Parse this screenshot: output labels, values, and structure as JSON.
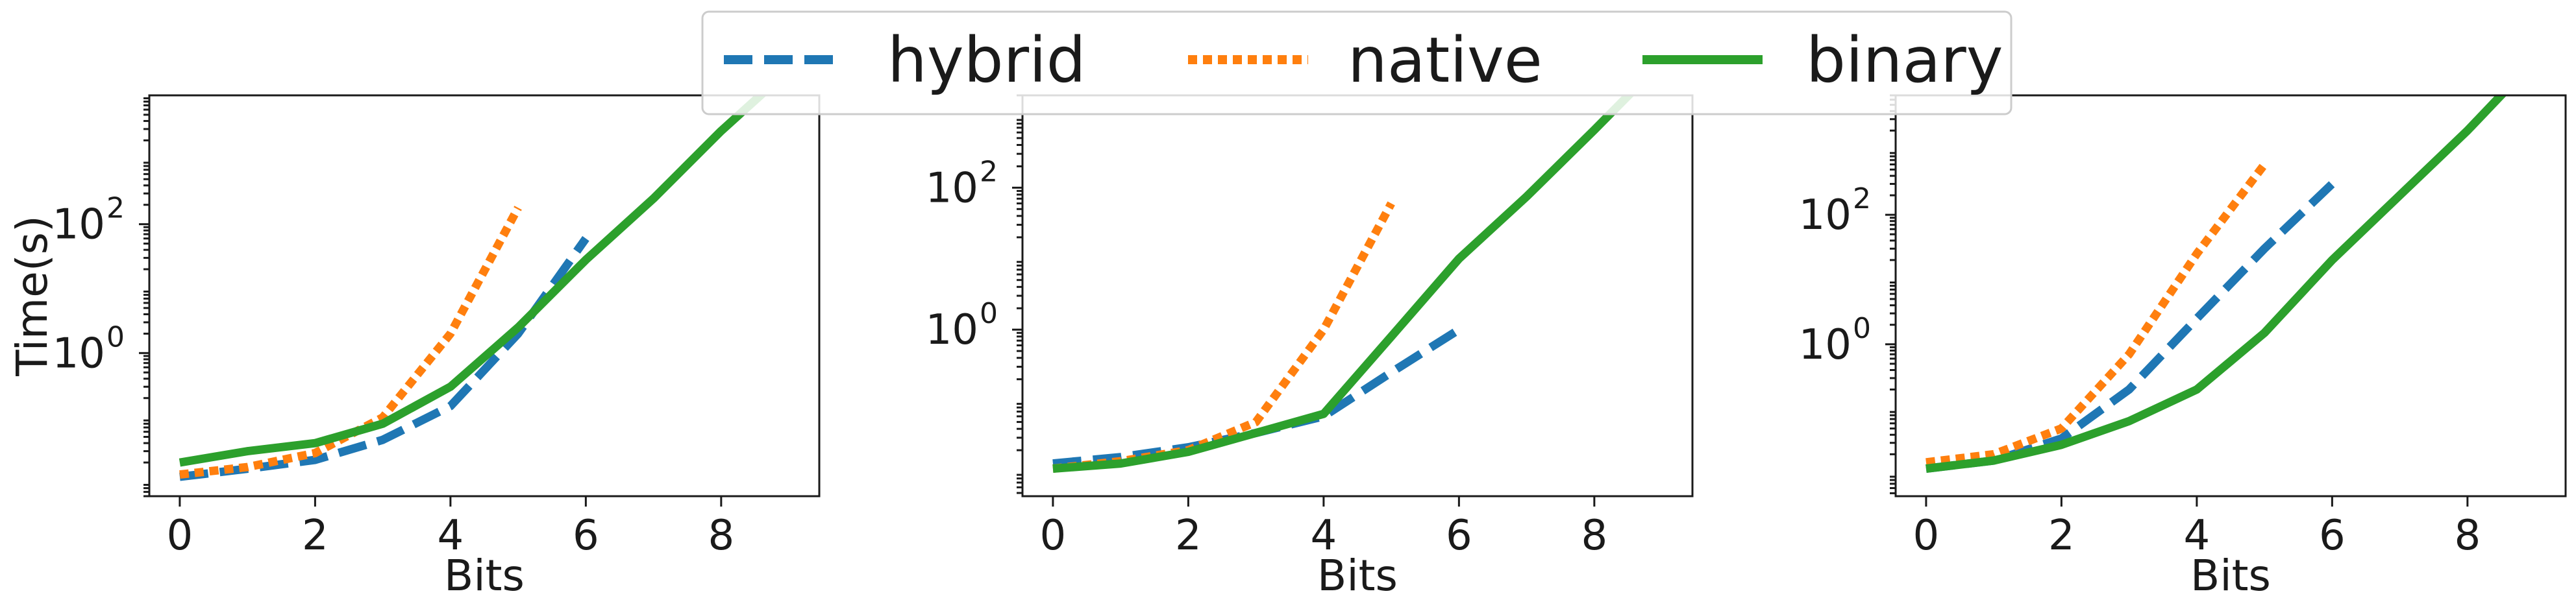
{
  "legend": {
    "placement": "top-center",
    "entries": [
      {
        "label": "hybrid",
        "color": "#1f77b4",
        "dash": "dashed"
      },
      {
        "label": "native",
        "color": "#ff7f0e",
        "dash": "dotted"
      },
      {
        "label": "binary",
        "color": "#2ca02c",
        "dash": "solid"
      }
    ]
  },
  "chart_data": [
    {
      "type": "line",
      "title": "",
      "xlabel": "Bits",
      "ylabel": "Time(s)",
      "yscale": "log",
      "xlim": [
        -0.45,
        9.45
      ],
      "ylim": [
        0.006,
        10000
      ],
      "xticks": [
        0,
        2,
        4,
        6,
        8
      ],
      "yticks": [
        {
          "value": 1,
          "label": "10^0"
        },
        {
          "value": 100,
          "label": "10^2"
        }
      ],
      "grid": false,
      "series": [
        {
          "name": "hybrid",
          "x": [
            0,
            1,
            2,
            3,
            4,
            5,
            6
          ],
          "y": [
            0.012,
            0.016,
            0.022,
            0.045,
            0.15,
            2,
            60
          ]
        },
        {
          "name": "native",
          "x": [
            0,
            1,
            2,
            3,
            4,
            5
          ],
          "y": [
            0.013,
            0.017,
            0.028,
            0.1,
            2,
            180
          ]
        },
        {
          "name": "binary",
          "x": [
            0,
            1,
            2,
            3,
            4,
            5,
            6,
            7,
            8,
            9
          ],
          "y": [
            0.02,
            0.03,
            0.04,
            0.08,
            0.3,
            2.5,
            28,
            250,
            2800,
            25000
          ]
        }
      ]
    },
    {
      "type": "line",
      "title": "",
      "xlabel": "Bits",
      "ylabel": "",
      "yscale": "log",
      "xlim": [
        -0.45,
        9.45
      ],
      "ylim": [
        0.0045,
        2000
      ],
      "xticks": [
        0,
        2,
        4,
        6,
        8
      ],
      "yticks": [
        {
          "value": 1,
          "label": "10^0"
        },
        {
          "value": 100,
          "label": "10^2"
        }
      ],
      "grid": false,
      "series": [
        {
          "name": "hybrid",
          "x": [
            0,
            1,
            2,
            3,
            4,
            5,
            6
          ],
          "y": [
            0.013,
            0.016,
            0.022,
            0.035,
            0.06,
            0.25,
            1
          ]
        },
        {
          "name": "native",
          "x": [
            0,
            1,
            2,
            3,
            4,
            5
          ],
          "y": [
            0.011,
            0.014,
            0.02,
            0.05,
            1,
            60
          ]
        },
        {
          "name": "binary",
          "x": [
            0,
            1,
            2,
            3,
            4,
            5,
            6,
            7,
            8,
            9
          ],
          "y": [
            0.011,
            0.013,
            0.019,
            0.035,
            0.065,
            0.8,
            10,
            75,
            650,
            6000
          ]
        }
      ]
    },
    {
      "type": "line",
      "title": "",
      "xlabel": "Bits",
      "ylabel": "",
      "yscale": "log",
      "xlim": [
        -0.45,
        9.45
      ],
      "ylim": [
        0.0045,
        7000
      ],
      "xticks": [
        0,
        2,
        4,
        6,
        8
      ],
      "yticks": [
        {
          "value": 1,
          "label": "10^0"
        },
        {
          "value": 100,
          "label": "10^2"
        }
      ],
      "grid": false,
      "series": [
        {
          "name": "hybrid",
          "x": [
            0,
            1,
            2,
            3,
            4,
            5,
            6
          ],
          "y": [
            0.012,
            0.016,
            0.035,
            0.2,
            2.5,
            30,
            300
          ]
        },
        {
          "name": "native",
          "x": [
            0,
            1,
            2,
            3,
            4,
            5
          ],
          "y": [
            0.015,
            0.02,
            0.05,
            0.7,
            25,
            600
          ]
        },
        {
          "name": "binary",
          "x": [
            0,
            1,
            2,
            3,
            4,
            5,
            6,
            7,
            8,
            9
          ],
          "y": [
            0.012,
            0.016,
            0.028,
            0.065,
            0.2,
            1.5,
            20,
            200,
            2000,
            25000
          ]
        }
      ]
    }
  ]
}
